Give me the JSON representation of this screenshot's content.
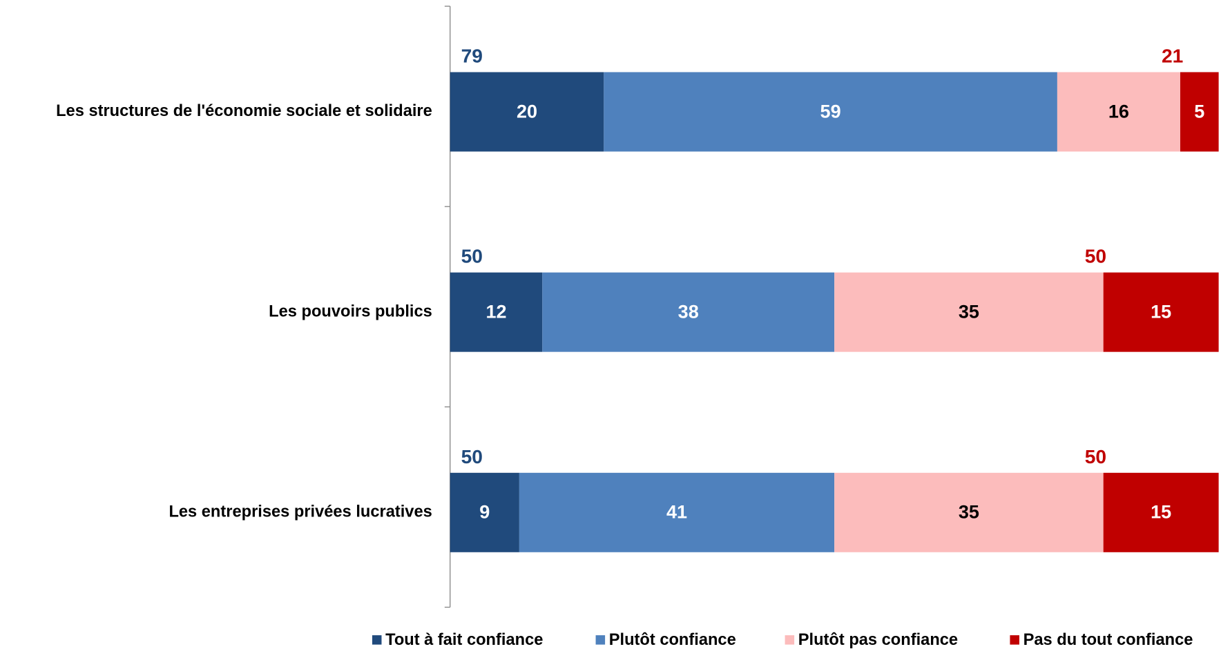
{
  "chart_data": {
    "type": "stacked-bar-horizontal",
    "categories": [
      "Les structures de l'économie sociale et solidaire",
      "Les pouvoirs publics",
      "Les entreprises privées lucratives"
    ],
    "series": [
      {
        "name": "Tout à fait confiance",
        "color": "#204a7c",
        "values": [
          20,
          12,
          9
        ]
      },
      {
        "name": "Plutôt confiance",
        "color": "#4f81bd",
        "values": [
          59,
          38,
          41
        ]
      },
      {
        "name": "Plutôt pas confiance",
        "color": "#fcbcbc",
        "values": [
          16,
          35,
          35
        ]
      },
      {
        "name": "Pas du tout confiance",
        "color": "#c00000",
        "values": [
          5,
          15,
          15
        ]
      }
    ],
    "positive_totals": [
      79,
      50,
      50
    ],
    "negative_totals": [
      21,
      50,
      50
    ],
    "positive_color": "#204a7c",
    "negative_color": "#c00000",
    "xlim": [
      0,
      100
    ],
    "legend": "bottom"
  }
}
